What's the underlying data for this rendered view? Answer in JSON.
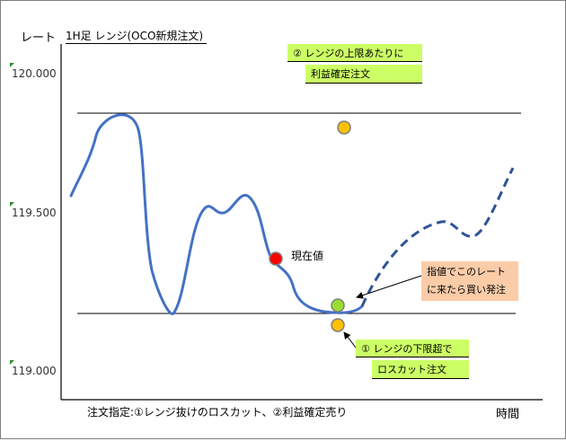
{
  "header": {
    "rate_label": "レート",
    "chart_title": "1H足 レンジ(OCO新規注文)"
  },
  "y_axis": {
    "ticks": [
      "120.000",
      "119.500",
      "119.000"
    ]
  },
  "x_axis": {
    "label": "時間"
  },
  "footer": {
    "note": "注文指定:①レンジ抜けのロスカット、②利益確定売り"
  },
  "labels": {
    "current_price": "現在値"
  },
  "callouts": {
    "upper": {
      "line1": "② レンジの上限あたりに",
      "line2": "利益確定注文"
    },
    "lower": {
      "line1": "① レンジの下限超で",
      "line2": "ロスカット注文"
    },
    "buy": {
      "line1": "指値でこのレート",
      "line2": "に来たら買い発注"
    }
  },
  "colors": {
    "price_line": "#4472c4",
    "current_dot": "#ff0000",
    "order_dot": "#ffc000",
    "buy_dot": "#99dd33",
    "callout_green": "#ccff66",
    "callout_peach": "#fbcca8"
  }
}
